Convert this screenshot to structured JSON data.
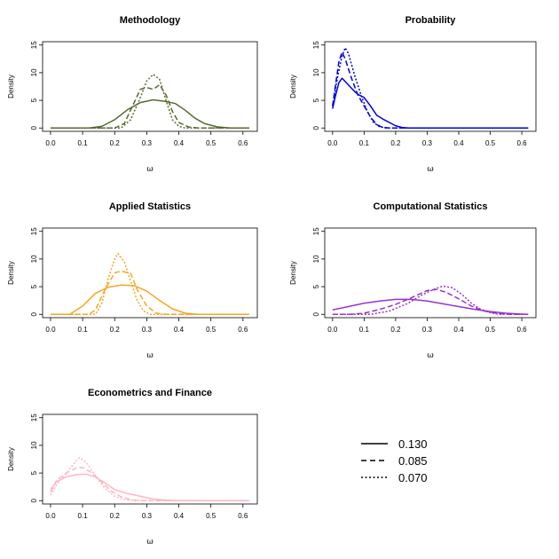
{
  "chart_data": [
    {
      "type": "line",
      "title": "Methodology",
      "xlabel": "ω",
      "ylabel": "Density",
      "color": "#556B2F",
      "xlim": [
        0.0,
        0.62
      ],
      "ylim": [
        0,
        15
      ],
      "xticks": [
        "0.0",
        "0.1",
        "0.2",
        "0.3",
        "0.4",
        "0.5",
        "0.6"
      ],
      "yticks": [
        "0",
        "5",
        "10",
        "15"
      ],
      "series": [
        {
          "name": "0.130",
          "style": "solid",
          "points": [
            [
              0,
              0
            ],
            [
              0.12,
              0
            ],
            [
              0.16,
              0.3
            ],
            [
              0.2,
              1.5
            ],
            [
              0.24,
              3.3
            ],
            [
              0.28,
              4.6
            ],
            [
              0.32,
              5.1
            ],
            [
              0.36,
              4.8
            ],
            [
              0.39,
              4.4
            ],
            [
              0.42,
              3.2
            ],
            [
              0.45,
              1.8
            ],
            [
              0.48,
              0.8
            ],
            [
              0.52,
              0.2
            ],
            [
              0.56,
              0
            ],
            [
              0.62,
              0
            ]
          ]
        },
        {
          "name": "0.085",
          "style": "dashed",
          "points": [
            [
              0,
              0
            ],
            [
              0.2,
              0
            ],
            [
              0.23,
              0.8
            ],
            [
              0.26,
              4.5
            ],
            [
              0.28,
              7.0
            ],
            [
              0.3,
              7.3
            ],
            [
              0.32,
              7.0
            ],
            [
              0.34,
              7.8
            ],
            [
              0.36,
              6.0
            ],
            [
              0.38,
              3.0
            ],
            [
              0.4,
              1.0
            ],
            [
              0.43,
              0.2
            ],
            [
              0.46,
              0
            ],
            [
              0.62,
              0
            ]
          ]
        },
        {
          "name": "0.070",
          "style": "dotted",
          "points": [
            [
              0,
              0
            ],
            [
              0.22,
              0
            ],
            [
              0.25,
              1.5
            ],
            [
              0.28,
              5.5
            ],
            [
              0.3,
              8.5
            ],
            [
              0.32,
              9.7
            ],
            [
              0.34,
              8.8
            ],
            [
              0.36,
              5.0
            ],
            [
              0.38,
              1.5
            ],
            [
              0.4,
              0.3
            ],
            [
              0.42,
              0
            ],
            [
              0.62,
              0
            ]
          ]
        }
      ]
    },
    {
      "type": "line",
      "title": "Probability",
      "xlabel": "ω",
      "ylabel": "Density",
      "color": "#0000E0",
      "xlim": [
        0.0,
        0.62
      ],
      "ylim": [
        0,
        15
      ],
      "xticks": [
        "0.0",
        "0.1",
        "0.2",
        "0.3",
        "0.4",
        "0.5",
        "0.6"
      ],
      "yticks": [
        "0",
        "5",
        "10",
        "15"
      ],
      "series": [
        {
          "name": "0.130",
          "style": "solid",
          "points": [
            [
              0,
              3.5
            ],
            [
              0.01,
              6.0
            ],
            [
              0.02,
              8.2
            ],
            [
              0.03,
              9.0
            ],
            [
              0.05,
              7.8
            ],
            [
              0.07,
              6.6
            ],
            [
              0.08,
              6.1
            ],
            [
              0.1,
              5.5
            ],
            [
              0.12,
              4.0
            ],
            [
              0.14,
              2.3
            ],
            [
              0.16,
              1.6
            ],
            [
              0.18,
              1.0
            ],
            [
              0.2,
              0.4
            ],
            [
              0.22,
              0.1
            ],
            [
              0.24,
              0
            ],
            [
              0.62,
              0
            ]
          ]
        },
        {
          "name": "0.085",
          "style": "dashed",
          "points": [
            [
              0,
              4.0
            ],
            [
              0.01,
              8.0
            ],
            [
              0.02,
              12.0
            ],
            [
              0.03,
              13.7
            ],
            [
              0.04,
              12.5
            ],
            [
              0.06,
              9.0
            ],
            [
              0.08,
              6.0
            ],
            [
              0.1,
              4.0
            ],
            [
              0.12,
              2.0
            ],
            [
              0.14,
              0.6
            ],
            [
              0.16,
              0.1
            ],
            [
              0.18,
              0
            ],
            [
              0.62,
              0
            ]
          ]
        },
        {
          "name": "0.070",
          "style": "dotted",
          "points": [
            [
              0,
              4.0
            ],
            [
              0.015,
              9.0
            ],
            [
              0.03,
              13.0
            ],
            [
              0.04,
              14.5
            ],
            [
              0.05,
              13.5
            ],
            [
              0.07,
              9.5
            ],
            [
              0.09,
              6.0
            ],
            [
              0.11,
              3.0
            ],
            [
              0.13,
              1.0
            ],
            [
              0.15,
              0.2
            ],
            [
              0.17,
              0
            ],
            [
              0.62,
              0
            ]
          ]
        }
      ]
    },
    {
      "type": "line",
      "title": "Applied Statistics",
      "xlabel": "ω",
      "ylabel": "Density",
      "color": "#F5A623",
      "xlim": [
        0.0,
        0.62
      ],
      "ylim": [
        0,
        15
      ],
      "xticks": [
        "0.0",
        "0.1",
        "0.2",
        "0.3",
        "0.4",
        "0.5",
        "0.6"
      ],
      "yticks": [
        "0",
        "5",
        "10",
        "15"
      ],
      "series": [
        {
          "name": "0.130",
          "style": "solid",
          "points": [
            [
              0,
              0
            ],
            [
              0.06,
              0
            ],
            [
              0.1,
              1.5
            ],
            [
              0.14,
              3.8
            ],
            [
              0.18,
              4.9
            ],
            [
              0.22,
              5.3
            ],
            [
              0.26,
              5.2
            ],
            [
              0.3,
              4.2
            ],
            [
              0.34,
              2.5
            ],
            [
              0.38,
              1.0
            ],
            [
              0.42,
              0.2
            ],
            [
              0.46,
              0
            ],
            [
              0.62,
              0
            ]
          ]
        },
        {
          "name": "0.085",
          "style": "dashed",
          "points": [
            [
              0,
              0
            ],
            [
              0.12,
              0
            ],
            [
              0.14,
              0.8
            ],
            [
              0.17,
              4.5
            ],
            [
              0.2,
              7.5
            ],
            [
              0.22,
              7.8
            ],
            [
              0.25,
              7.4
            ],
            [
              0.27,
              4.5
            ],
            [
              0.3,
              1.5
            ],
            [
              0.33,
              0.2
            ],
            [
              0.36,
              0
            ],
            [
              0.62,
              0
            ]
          ]
        },
        {
          "name": "0.070",
          "style": "dotted",
          "points": [
            [
              0,
              0
            ],
            [
              0.14,
              0
            ],
            [
              0.16,
              2.0
            ],
            [
              0.18,
              6.5
            ],
            [
              0.2,
              10.0
            ],
            [
              0.21,
              11.0
            ],
            [
              0.23,
              9.5
            ],
            [
              0.25,
              6.0
            ],
            [
              0.27,
              2.5
            ],
            [
              0.29,
              0.6
            ],
            [
              0.31,
              0
            ],
            [
              0.62,
              0
            ]
          ]
        }
      ]
    },
    {
      "type": "line",
      "title": "Computational Statistics",
      "xlabel": "ω",
      "ylabel": "Density",
      "color": "#9932CC",
      "xlim": [
        0.0,
        0.62
      ],
      "ylim": [
        0,
        15
      ],
      "xticks": [
        "0.0",
        "0.1",
        "0.2",
        "0.3",
        "0.4",
        "0.5",
        "0.6"
      ],
      "yticks": [
        "0",
        "5",
        "10",
        "15"
      ],
      "series": [
        {
          "name": "0.130",
          "style": "solid",
          "points": [
            [
              0,
              0.8
            ],
            [
              0.05,
              1.4
            ],
            [
              0.1,
              2.0
            ],
            [
              0.15,
              2.4
            ],
            [
              0.2,
              2.7
            ],
            [
              0.25,
              2.7
            ],
            [
              0.3,
              2.4
            ],
            [
              0.35,
              1.9
            ],
            [
              0.4,
              1.4
            ],
            [
              0.45,
              0.9
            ],
            [
              0.5,
              0.5
            ],
            [
              0.55,
              0.2
            ],
            [
              0.6,
              0.05
            ],
            [
              0.62,
              0
            ]
          ]
        },
        {
          "name": "0.085",
          "style": "dashed",
          "points": [
            [
              0,
              0
            ],
            [
              0.05,
              0
            ],
            [
              0.1,
              0.2
            ],
            [
              0.15,
              0.9
            ],
            [
              0.2,
              1.8
            ],
            [
              0.25,
              3.0
            ],
            [
              0.3,
              4.3
            ],
            [
              0.33,
              4.5
            ],
            [
              0.36,
              4.0
            ],
            [
              0.4,
              2.8
            ],
            [
              0.44,
              1.5
            ],
            [
              0.48,
              0.6
            ],
            [
              0.52,
              0.2
            ],
            [
              0.56,
              0
            ],
            [
              0.62,
              0
            ]
          ]
        },
        {
          "name": "0.070",
          "style": "dotted",
          "points": [
            [
              0,
              0
            ],
            [
              0.12,
              0
            ],
            [
              0.18,
              0.6
            ],
            [
              0.24,
              2.0
            ],
            [
              0.28,
              3.4
            ],
            [
              0.32,
              4.5
            ],
            [
              0.35,
              5.1
            ],
            [
              0.38,
              4.8
            ],
            [
              0.41,
              3.6
            ],
            [
              0.44,
              2.0
            ],
            [
              0.47,
              0.9
            ],
            [
              0.5,
              0.3
            ],
            [
              0.53,
              0
            ],
            [
              0.62,
              0
            ]
          ]
        }
      ]
    },
    {
      "type": "line",
      "title": "Econometrics and Finance",
      "xlabel": "ω",
      "ylabel": "Density",
      "color": "#FFB6C1",
      "xlim": [
        0.0,
        0.62
      ],
      "ylim": [
        0,
        15
      ],
      "xticks": [
        "0.0",
        "0.1",
        "0.2",
        "0.3",
        "0.4",
        "0.5",
        "0.6"
      ],
      "yticks": [
        "0",
        "5",
        "10",
        "15"
      ],
      "series": [
        {
          "name": "0.130",
          "style": "solid",
          "points": [
            [
              0,
              2.0
            ],
            [
              0.02,
              3.5
            ],
            [
              0.05,
              4.3
            ],
            [
              0.08,
              4.7
            ],
            [
              0.11,
              4.8
            ],
            [
              0.14,
              4.3
            ],
            [
              0.17,
              3.2
            ],
            [
              0.2,
              2.0
            ],
            [
              0.24,
              1.3
            ],
            [
              0.28,
              0.8
            ],
            [
              0.32,
              0.3
            ],
            [
              0.36,
              0.1
            ],
            [
              0.4,
              0
            ],
            [
              0.62,
              0
            ]
          ]
        },
        {
          "name": "0.085",
          "style": "dashed",
          "points": [
            [
              0,
              1.5
            ],
            [
              0.02,
              3.8
            ],
            [
              0.05,
              5.0
            ],
            [
              0.08,
              5.9
            ],
            [
              0.1,
              6.0
            ],
            [
              0.13,
              5.0
            ],
            [
              0.16,
              3.3
            ],
            [
              0.19,
              1.7
            ],
            [
              0.22,
              0.7
            ],
            [
              0.25,
              0.2
            ],
            [
              0.28,
              0
            ],
            [
              0.62,
              0
            ]
          ]
        },
        {
          "name": "0.070",
          "style": "dotted",
          "points": [
            [
              0,
              1.0
            ],
            [
              0.02,
              3.0
            ],
            [
              0.05,
              5.0
            ],
            [
              0.08,
              7.2
            ],
            [
              0.09,
              7.8
            ],
            [
              0.11,
              7.0
            ],
            [
              0.14,
              4.5
            ],
            [
              0.17,
              2.2
            ],
            [
              0.2,
              0.8
            ],
            [
              0.23,
              0.2
            ],
            [
              0.26,
              0
            ],
            [
              0.62,
              0
            ]
          ]
        }
      ]
    }
  ],
  "legend": {
    "placement": "bottom-right",
    "items": [
      {
        "label": "0.130",
        "style": "solid"
      },
      {
        "label": "0.085",
        "style": "dashed"
      },
      {
        "label": "0.070",
        "style": "dotted"
      }
    ]
  }
}
